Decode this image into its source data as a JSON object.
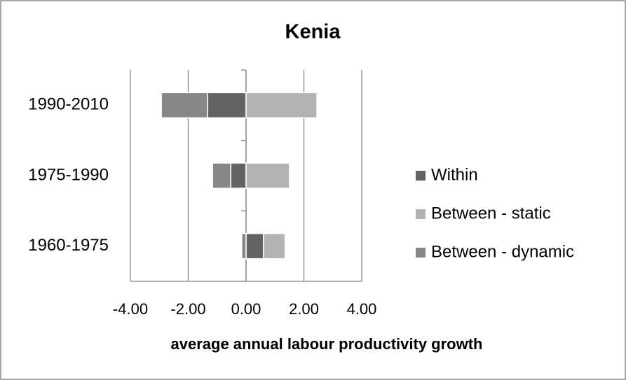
{
  "chart_data": {
    "type": "bar",
    "orientation": "horizontal",
    "stacked": true,
    "title": "Kenia",
    "x_label": "average annual labour productivity growth",
    "categories": [
      "1990-2010",
      "1975-1990",
      "1960-1975"
    ],
    "series": [
      {
        "name": "Within",
        "color": "#636363",
        "values": [
          -1.33,
          -0.53,
          0.6
        ]
      },
      {
        "name": "Between - static",
        "color": "#b3b3b3",
        "values": [
          2.45,
          1.5,
          0.75
        ]
      },
      {
        "name": "Between - dynamic",
        "color": "#878787",
        "values": [
          -1.6,
          -0.63,
          -0.15
        ]
      }
    ],
    "xlim": [
      -4,
      4
    ],
    "xticks": [
      {
        "value": -4,
        "label": "-4.00"
      },
      {
        "value": -2,
        "label": "-2.00"
      },
      {
        "value": 0,
        "label": "0.00"
      },
      {
        "value": 2,
        "label": "2.00"
      },
      {
        "value": 4,
        "label": "4.00"
      }
    ],
    "grid": true,
    "legend": "right"
  }
}
